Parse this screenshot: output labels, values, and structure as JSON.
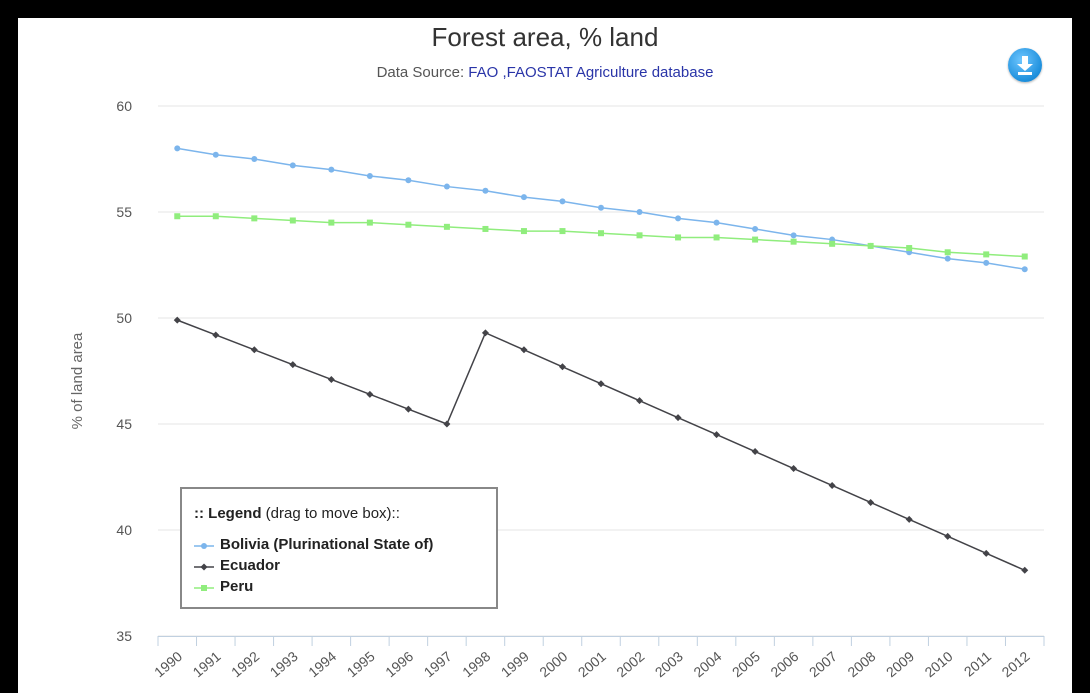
{
  "chart_data": {
    "type": "line",
    "title": "Forest area, % land",
    "subtitle_prefix": "Data Source: ",
    "subtitle_source": "FAO ,FAOSTAT Agriculture database",
    "ylabel": "% of land area",
    "xlabel": "",
    "ylim": [
      35,
      60
    ],
    "yticks": [
      35,
      40,
      45,
      50,
      55,
      60
    ],
    "grid": true,
    "legend_position": "bottom-left",
    "x": [
      "1990",
      "1991",
      "1992",
      "1993",
      "1994",
      "1995",
      "1996",
      "1997",
      "1998",
      "1999",
      "2000",
      "2001",
      "2002",
      "2003",
      "2004",
      "2005",
      "2006",
      "2007",
      "2008",
      "2009",
      "2010",
      "2011",
      "2012"
    ],
    "series": [
      {
        "name": "Bolivia (Plurinational State of)",
        "color": "#7cb5ec",
        "marker": "circle",
        "values": [
          58.0,
          57.7,
          57.5,
          57.2,
          57.0,
          56.7,
          56.5,
          56.2,
          56.0,
          55.7,
          55.5,
          55.2,
          55.0,
          54.7,
          54.5,
          54.2,
          53.9,
          53.7,
          53.4,
          53.1,
          52.8,
          52.6,
          52.3
        ]
      },
      {
        "name": "Ecuador",
        "color": "#434348",
        "marker": "diamond",
        "values": [
          49.9,
          49.2,
          48.5,
          47.8,
          47.1,
          46.4,
          45.7,
          45.0,
          49.3,
          48.5,
          47.7,
          46.9,
          46.1,
          45.3,
          44.5,
          43.7,
          42.9,
          42.1,
          41.3,
          40.5,
          39.7,
          38.9,
          38.1
        ]
      },
      {
        "name": "Peru",
        "color": "#90ed7d",
        "marker": "square",
        "values": [
          54.8,
          54.8,
          54.7,
          54.6,
          54.5,
          54.5,
          54.4,
          54.3,
          54.2,
          54.1,
          54.1,
          54.0,
          53.9,
          53.8,
          53.8,
          53.7,
          53.6,
          53.5,
          53.4,
          53.3,
          53.1,
          53.0,
          52.9
        ]
      }
    ],
    "legend": {
      "title_bold": ":: Legend",
      "title_rest": " (drag to move box)::"
    }
  },
  "toolbar": {
    "download_icon": "download-icon"
  }
}
